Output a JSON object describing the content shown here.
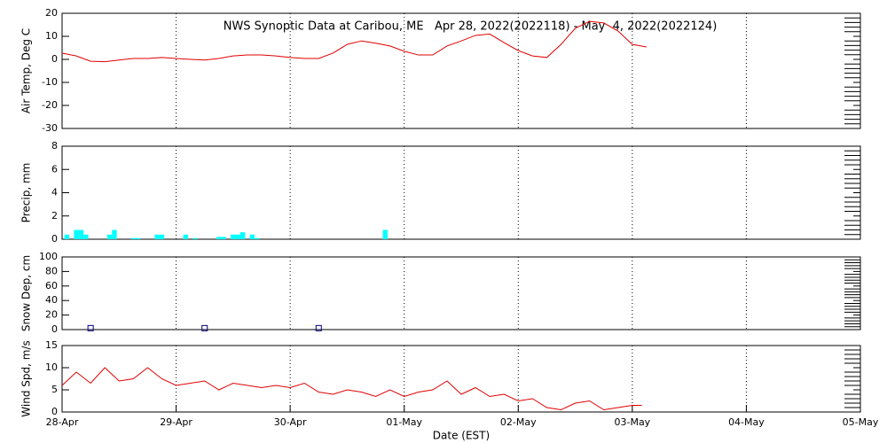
{
  "chart_data": [
    {
      "type": "line",
      "title": "NWS Synoptic Data at Caribou, ME   Apr 28, 2022(2022118) - May  4, 2022(2022124)",
      "ylabel": "Air Temp, Deg C",
      "color": "#e00000",
      "xlim": [
        0,
        168
      ],
      "ylim": [
        -30,
        20
      ],
      "yticks": [
        -30,
        -20,
        -10,
        0,
        10,
        20
      ],
      "x": [
        0,
        3,
        6,
        9,
        12,
        15,
        18,
        21,
        24,
        27,
        30,
        33,
        36,
        39,
        42,
        45,
        48,
        51,
        54,
        57,
        60,
        63,
        66,
        69,
        72,
        75,
        78,
        81,
        84,
        87,
        90,
        93,
        96,
        99,
        102,
        105,
        108,
        111,
        114,
        117,
        120,
        123
      ],
      "values": [
        2.7,
        1.5,
        -0.8,
        -1,
        -0.3,
        0.4,
        0.4,
        0.8,
        0.4,
        0,
        -0.3,
        0.4,
        1.5,
        1.9,
        1.9,
        1.5,
        0.8,
        0.4,
        0.4,
        2.7,
        6.5,
        8,
        7,
        5.8,
        3.5,
        1.9,
        1.9,
        5.8,
        8,
        10.4,
        11,
        7.3,
        3.8,
        1.5,
        0.8,
        6.5,
        13.5,
        16.5,
        15.8,
        12.3,
        6.5,
        5.4
      ]
    },
    {
      "type": "bar",
      "ylabel": "Precip, mm",
      "color": "#00ffff",
      "xlim": [
        0,
        168
      ],
      "ylim": [
        0,
        8
      ],
      "yticks": [
        0,
        2,
        4,
        6,
        8
      ],
      "x": [
        1,
        3,
        4,
        5,
        10,
        11,
        15,
        16,
        20,
        21,
        26,
        28,
        33,
        34,
        36,
        37,
        38,
        40,
        41,
        68
      ],
      "values": [
        0.4,
        0.8,
        0.8,
        0.4,
        0.4,
        0.8,
        0.1,
        0.1,
        0.4,
        0.4,
        0.4,
        0.1,
        0.2,
        0.2,
        0.4,
        0.4,
        0.6,
        0.4,
        0.1,
        0.8
      ]
    },
    {
      "type": "scatter",
      "ylabel": "Snow Dep, cm",
      "color": "#000080",
      "xlim": [
        0,
        168
      ],
      "ylim": [
        0,
        100
      ],
      "yticks": [
        0,
        20,
        40,
        60,
        80,
        100
      ],
      "x": [
        6,
        30,
        54
      ],
      "values": [
        2,
        2,
        2
      ]
    },
    {
      "type": "line",
      "ylabel": "Wind Spd, m/s",
      "xlabel": "Date (EST)",
      "color": "#e00000",
      "xlim": [
        0,
        168
      ],
      "ylim": [
        0,
        15
      ],
      "yticks": [
        0,
        5,
        10,
        15
      ],
      "xticks": [
        {
          "value": 0,
          "label": "28-Apr"
        },
        {
          "value": 24,
          "label": "29-Apr"
        },
        {
          "value": 48,
          "label": "30-Apr"
        },
        {
          "value": 72,
          "label": "01-May"
        },
        {
          "value": 96,
          "label": "02-May"
        },
        {
          "value": 120,
          "label": "03-May"
        },
        {
          "value": 144,
          "label": "04-May"
        },
        {
          "value": 168,
          "label": "05-May"
        }
      ],
      "x": [
        0,
        3,
        6,
        9,
        12,
        15,
        18,
        21,
        24,
        27,
        30,
        33,
        36,
        39,
        42,
        45,
        48,
        51,
        54,
        57,
        60,
        63,
        66,
        69,
        72,
        75,
        78,
        81,
        84,
        87,
        90,
        93,
        96,
        99,
        102,
        105,
        108,
        111,
        114,
        117,
        120,
        122
      ],
      "values": [
        6,
        9,
        6.5,
        10,
        7,
        7.5,
        10,
        7.5,
        6,
        6.5,
        7,
        5,
        6.5,
        6,
        5.5,
        6,
        5.5,
        6.5,
        4.5,
        4,
        5,
        4.5,
        3.5,
        5,
        3.5,
        4.5,
        5,
        7,
        4,
        5.5,
        3.5,
        4,
        2.5,
        3,
        1,
        0.5,
        2,
        2.5,
        0.5,
        1,
        1.5,
        1.5
      ]
    }
  ]
}
